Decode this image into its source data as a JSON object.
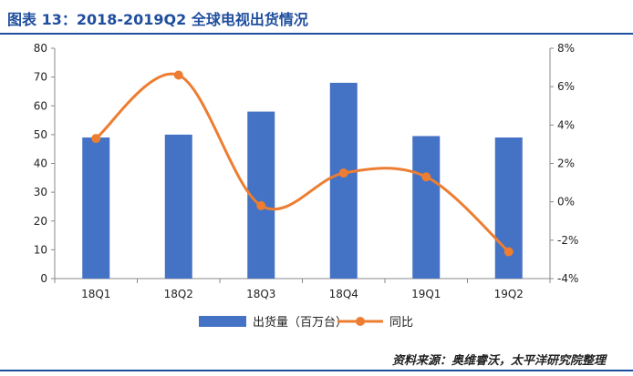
{
  "header": {
    "title": "图表 13：2018-2019Q2 全球电视出货情况"
  },
  "source": "资料来源：奥维睿沃，太平洋研究院整理",
  "colors": {
    "bar": "#4472c4",
    "line": "#ed7d31",
    "title": "#1f4e9e"
  },
  "chart_data": {
    "type": "bar",
    "categories": [
      "18Q1",
      "18Q2",
      "18Q3",
      "18Q4",
      "19Q1",
      "19Q2"
    ],
    "series": [
      {
        "name": "出货量（百万台）",
        "type": "bar",
        "axis": "left",
        "values": [
          49,
          50,
          58,
          68,
          49.5,
          49
        ]
      },
      {
        "name": "同比",
        "type": "line",
        "smooth": true,
        "axis": "right",
        "values": [
          3.3,
          6.6,
          -0.2,
          1.5,
          1.3,
          -2.6
        ]
      }
    ],
    "y_left": {
      "min": 0,
      "max": 80,
      "step": 10,
      "ticks": [
        "0",
        "10",
        "20",
        "30",
        "40",
        "50",
        "60",
        "70",
        "80"
      ]
    },
    "y_right": {
      "min": -4,
      "max": 8,
      "step": 2,
      "ticks": [
        "-4%",
        "-2%",
        "0%",
        "2%",
        "4%",
        "6%",
        "8%"
      ]
    },
    "legend": {
      "position": "bottom"
    },
    "grid": false
  }
}
